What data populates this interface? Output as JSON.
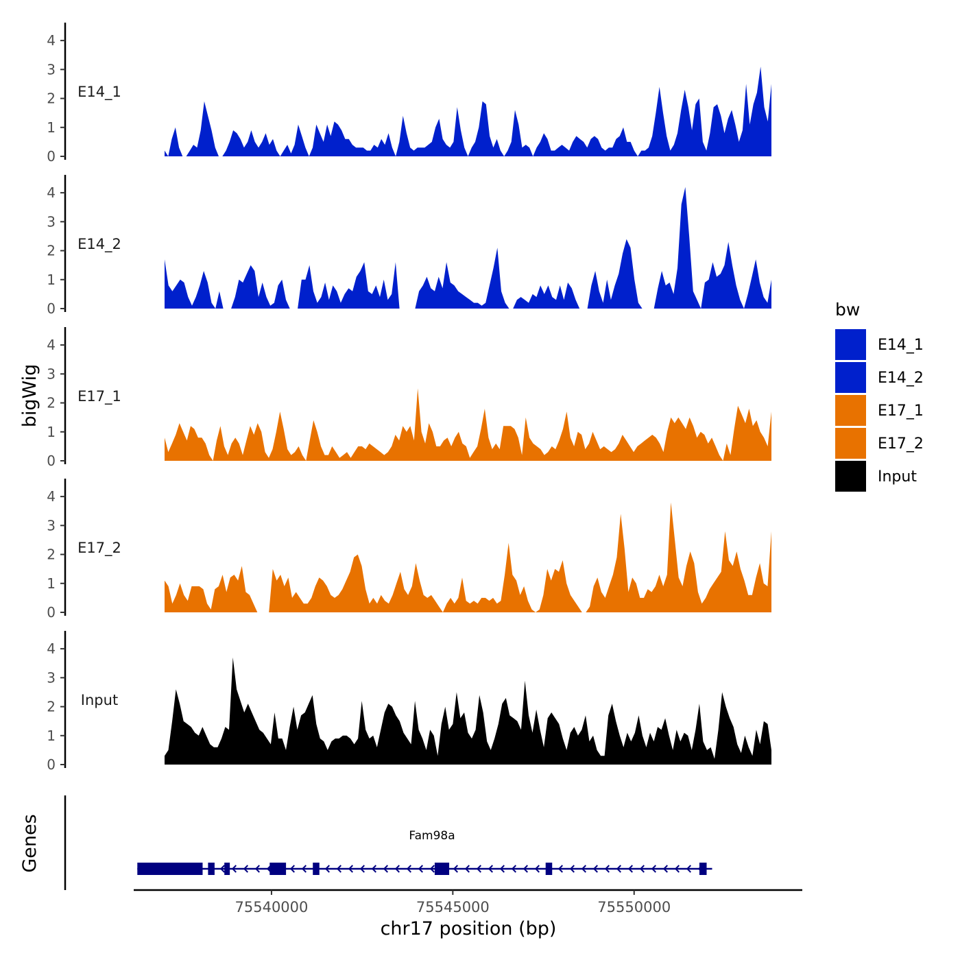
{
  "chart_data": {
    "type": "area",
    "ylabel": "bigWig",
    "xlabel": "chr17 position (bp)",
    "ylim": [
      0,
      4.5
    ],
    "y_ticks": [
      "0",
      "1",
      "2",
      "3",
      "4"
    ],
    "xlim": [
      75536200,
      75554600
    ],
    "x_ticks": [
      {
        "value": 75540000,
        "label": "75540000"
      },
      {
        "value": 75545000,
        "label": "75545000"
      },
      {
        "value": 75550000,
        "label": "75550000"
      }
    ],
    "colors": {
      "E14_1": "#0020CC",
      "E14_2": "#0020CC",
      "E17_1": "#E87200",
      "E17_2": "#E87200",
      "Input": "#000000",
      "gene": "#000080"
    },
    "series": [
      {
        "name": "E14_1",
        "values": [
          0.2,
          0,
          0.6,
          1.0,
          0.3,
          0,
          0,
          0.2,
          0.4,
          0.3,
          0.9,
          1.9,
          1.4,
          0.9,
          0.3,
          0,
          0,
          0.2,
          0.5,
          0.9,
          0.8,
          0.6,
          0.3,
          0.5,
          0.9,
          0.5,
          0.3,
          0.5,
          0.8,
          0.4,
          0.6,
          0.2,
          0,
          0.2,
          0.4,
          0.1,
          0.4,
          1.1,
          0.7,
          0.3,
          0,
          0.3,
          1.1,
          0.8,
          0.5,
          1.1,
          0.7,
          1.2,
          1.1,
          0.9,
          0.6,
          0.6,
          0.4,
          0.3,
          0.3,
          0.3,
          0.2,
          0.2,
          0.4,
          0.3,
          0.6,
          0.4,
          0.8,
          0.3,
          0,
          0.5,
          1.4,
          0.8,
          0.3,
          0.2,
          0.3,
          0.3,
          0.3,
          0.4,
          0.5,
          1.0,
          1.3,
          0.6,
          0.4,
          0.3,
          0.5,
          1.7,
          0.9,
          0.3,
          0,
          0.3,
          0.5,
          1.0,
          1.9,
          1.8,
          0.7,
          0.3,
          0.6,
          0.2,
          0,
          0.2,
          0.5,
          1.6,
          1.1,
          0.3,
          0.4,
          0.3,
          0,
          0.3,
          0.5,
          0.8,
          0.6,
          0.2,
          0.2,
          0.3,
          0.4,
          0.3,
          0.2,
          0.5,
          0.7,
          0.6,
          0.5,
          0.3,
          0.6,
          0.7,
          0.6,
          0.3,
          0.2,
          0.3,
          0.3,
          0.6,
          0.7,
          1.0,
          0.5,
          0.5,
          0.2,
          0,
          0.2,
          0.2,
          0.3,
          0.7,
          1.5,
          2.4,
          1.5,
          0.7,
          0.2,
          0.4,
          0.8,
          1.6,
          2.3,
          1.7,
          0.9,
          1.8,
          2.0,
          0.5,
          0.2,
          0.8,
          1.7,
          1.8,
          1.4,
          0.8,
          1.3,
          1.6,
          1.1,
          0.5,
          0.9,
          2.5,
          1.1,
          1.8,
          2.2,
          3.1,
          1.7,
          1.2,
          2.5
        ]
      },
      {
        "name": "E14_2",
        "values": [
          1.7,
          0.8,
          0.6,
          0.8,
          1.0,
          0.9,
          0.4,
          0.1,
          0.4,
          0.8,
          1.3,
          0.9,
          0.2,
          0,
          0.6,
          0,
          0,
          0,
          0.4,
          1.0,
          0.9,
          1.2,
          1.5,
          1.3,
          0.4,
          0.9,
          0.4,
          0.1,
          0.2,
          0.8,
          1.0,
          0.3,
          0,
          0,
          0,
          1.0,
          1.0,
          1.5,
          0.6,
          0.2,
          0.4,
          0.9,
          0.3,
          0.8,
          0.6,
          0.2,
          0.5,
          0.7,
          0.6,
          1.1,
          1.3,
          1.6,
          0.6,
          0.5,
          0.8,
          0.4,
          1.0,
          0.3,
          0.5,
          1.6,
          0,
          0,
          0,
          0,
          0,
          0.6,
          0.8,
          1.1,
          0.7,
          0.6,
          1.1,
          0.7,
          1.6,
          0.9,
          0.8,
          0.6,
          0.5,
          0.4,
          0.3,
          0.2,
          0.2,
          0.1,
          0.2,
          0.8,
          1.4,
          2.1,
          0.6,
          0.2,
          0,
          0,
          0.3,
          0.4,
          0.3,
          0.2,
          0.5,
          0.4,
          0.8,
          0.5,
          0.8,
          0.4,
          0.3,
          0.8,
          0.3,
          0.9,
          0.7,
          0.3,
          0,
          0,
          0,
          0.8,
          1.3,
          0.6,
          0.2,
          1.0,
          0.3,
          0.8,
          1.2,
          1.9,
          2.4,
          2.1,
          1.0,
          0.2,
          0,
          0,
          0,
          0,
          0.7,
          1.3,
          0.8,
          0.9,
          0.5,
          1.4,
          3.6,
          4.2,
          2.5,
          0.6,
          0.3,
          0,
          0.9,
          1.0,
          1.6,
          1.1,
          1.2,
          1.5,
          2.3,
          1.5,
          0.8,
          0.3,
          0,
          0.5,
          1.1,
          1.7,
          0.9,
          0.4,
          0.2,
          1.0
        ]
      },
      {
        "name": "E17_1",
        "values": [
          0.8,
          0.3,
          0.6,
          0.9,
          1.3,
          1.0,
          0.7,
          1.2,
          1.1,
          0.8,
          0.8,
          0.6,
          0.2,
          0,
          0.7,
          1.2,
          0.5,
          0.2,
          0.6,
          0.8,
          0.6,
          0.2,
          0.7,
          1.2,
          0.9,
          1.3,
          1.0,
          0.3,
          0.1,
          0.4,
          1.0,
          1.7,
          1.1,
          0.4,
          0.2,
          0.3,
          0.5,
          0.2,
          0,
          0.7,
          1.4,
          1.0,
          0.5,
          0.2,
          0.2,
          0.5,
          0.3,
          0.1,
          0.2,
          0.3,
          0.1,
          0.3,
          0.5,
          0.5,
          0.4,
          0.6,
          0.5,
          0.4,
          0.3,
          0.2,
          0.3,
          0.5,
          0.9,
          0.7,
          1.2,
          1.0,
          1.2,
          0.7,
          2.5,
          1.0,
          0.6,
          1.3,
          1.0,
          0.5,
          0.5,
          0.7,
          0.8,
          0.5,
          0.8,
          1.0,
          0.6,
          0.5,
          0.1,
          0.3,
          0.5,
          1.1,
          1.8,
          0.8,
          0.4,
          0.6,
          0.4,
          1.2,
          1.2,
          1.2,
          1.1,
          0.8,
          0.2,
          1.5,
          0.8,
          0.6,
          0.5,
          0.4,
          0.2,
          0.3,
          0.5,
          0.4,
          0.7,
          1.1,
          1.7,
          0.8,
          0.5,
          1.0,
          0.9,
          0.4,
          0.6,
          1.0,
          0.7,
          0.4,
          0.5,
          0.4,
          0.3,
          0.4,
          0.6,
          0.9,
          0.7,
          0.5,
          0.3,
          0.5,
          0.6,
          0.7,
          0.8,
          0.9,
          0.8,
          0.6,
          0.3,
          1.0,
          1.5,
          1.3,
          1.5,
          1.3,
          1.1,
          1.5,
          1.2,
          0.8,
          1.0,
          0.9,
          0.6,
          0.8,
          0.5,
          0.2,
          0,
          0.6,
          0.2,
          1.1,
          1.9,
          1.6,
          1.3,
          1.8,
          1.2,
          1.4,
          1.0,
          0.8,
          0.5,
          1.7
        ]
      },
      {
        "name": "E17_2",
        "values": [
          1.1,
          0.9,
          0.3,
          0.6,
          1.0,
          0.6,
          0.4,
          0.9,
          0.9,
          0.9,
          0.8,
          0.3,
          0.1,
          0.8,
          0.9,
          1.3,
          0.7,
          1.2,
          1.3,
          1.1,
          1.6,
          0.7,
          0.6,
          0.3,
          0,
          0,
          0,
          0,
          1.5,
          1.1,
          1.3,
          0.9,
          1.2,
          0.5,
          0.7,
          0.5,
          0.3,
          0.3,
          0.5,
          0.9,
          1.2,
          1.1,
          0.9,
          0.6,
          0.5,
          0.6,
          0.8,
          1.1,
          1.4,
          1.9,
          2.0,
          1.6,
          0.8,
          0.3,
          0.5,
          0.3,
          0.6,
          0.4,
          0.3,
          0.6,
          1.0,
          1.4,
          0.8,
          0.6,
          0.9,
          1.7,
          1.1,
          0.6,
          0.5,
          0.6,
          0.4,
          0.2,
          0,
          0.3,
          0.5,
          0.3,
          0.5,
          1.2,
          0.4,
          0.3,
          0.4,
          0.3,
          0.5,
          0.5,
          0.4,
          0.5,
          0.3,
          0.4,
          1.3,
          2.4,
          1.3,
          1.1,
          0.6,
          0.9,
          0.4,
          0.1,
          0,
          0.1,
          0.6,
          1.5,
          1.1,
          1.5,
          1.4,
          1.8,
          1.0,
          0.6,
          0.4,
          0.2,
          0,
          0,
          0.2,
          0.9,
          1.2,
          0.7,
          0.5,
          0.9,
          1.3,
          1.9,
          3.4,
          2.2,
          0.7,
          1.2,
          1.0,
          0.5,
          0.5,
          0.8,
          0.7,
          0.9,
          1.3,
          0.9,
          1.3,
          3.8,
          2.5,
          1.2,
          0.9,
          1.6,
          2.1,
          1.7,
          0.7,
          0.3,
          0.5,
          0.8,
          1.0,
          1.2,
          1.4,
          2.8,
          1.8,
          1.6,
          2.1,
          1.5,
          1.1,
          0.6,
          0.6,
          1.2,
          1.7,
          1.0,
          0.9,
          2.8
        ]
      },
      {
        "name": "Input",
        "values": [
          0.3,
          0.5,
          1.5,
          2.6,
          2.1,
          1.5,
          1.4,
          1.3,
          1.1,
          1.0,
          1.3,
          1.0,
          0.7,
          0.6,
          0.6,
          0.9,
          1.3,
          1.2,
          3.7,
          2.6,
          2.2,
          1.8,
          2.1,
          1.8,
          1.5,
          1.2,
          1.1,
          0.9,
          0.7,
          1.8,
          0.9,
          0.9,
          0.5,
          1.3,
          2.0,
          1.2,
          1.7,
          1.8,
          2.1,
          2.4,
          1.4,
          0.9,
          0.8,
          0.5,
          0.8,
          0.9,
          0.9,
          1.0,
          1.0,
          0.9,
          0.7,
          0.9,
          2.2,
          1.2,
          0.9,
          1.0,
          0.6,
          1.2,
          1.8,
          2.1,
          2.0,
          1.7,
          1.5,
          1.1,
          0.9,
          0.7,
          2.2,
          1.2,
          0.9,
          0.5,
          1.2,
          1.0,
          0.3,
          1.4,
          2.0,
          1.2,
          1.4,
          2.5,
          1.6,
          1.8,
          1.1,
          0.9,
          1.2,
          2.4,
          1.8,
          0.8,
          0.5,
          0.9,
          1.4,
          2.1,
          2.3,
          1.7,
          1.6,
          1.5,
          1.2,
          2.9,
          1.7,
          1.1,
          1.9,
          1.2,
          0.6,
          1.6,
          1.8,
          1.6,
          1.4,
          0.9,
          0.5,
          1.1,
          1.3,
          1.0,
          1.2,
          1.7,
          0.8,
          1.0,
          0.5,
          0.3,
          0.3,
          1.7,
          2.1,
          1.5,
          1.0,
          0.6,
          1.1,
          0.8,
          1.1,
          1.7,
          1.0,
          0.6,
          1.1,
          0.8,
          1.3,
          1.2,
          1.6,
          1.0,
          0.5,
          1.2,
          0.8,
          1.1,
          1.0,
          0.5,
          1.2,
          2.1,
          0.8,
          0.5,
          0.6,
          0.2,
          1.2,
          2.5,
          2.0,
          1.6,
          1.3,
          0.7,
          0.4,
          1.0,
          0.6,
          0.3,
          1.2,
          0.7,
          1.5,
          1.4,
          0.5
        ]
      }
    ],
    "genes_label": "Genes",
    "gene": {
      "name": "Fam98a",
      "start": 75536300,
      "end": 75552000,
      "exons": [
        [
          75536300,
          75538100
        ],
        [
          75538250,
          75538430
        ],
        [
          75538700,
          75538850
        ],
        [
          75539950,
          75540400
        ],
        [
          75541140,
          75541320
        ],
        [
          75544500,
          75544900
        ],
        [
          75547560,
          75547740
        ],
        [
          75551800,
          75552000
        ]
      ]
    },
    "legend": {
      "title": "bw",
      "position": "right",
      "entries": [
        {
          "label": "E14_1",
          "color": "#0020CC"
        },
        {
          "label": "E14_2",
          "color": "#0020CC"
        },
        {
          "label": "E17_1",
          "color": "#E87200"
        },
        {
          "label": "E17_2",
          "color": "#E87200"
        },
        {
          "label": "Input",
          "color": "#000000"
        }
      ]
    }
  }
}
